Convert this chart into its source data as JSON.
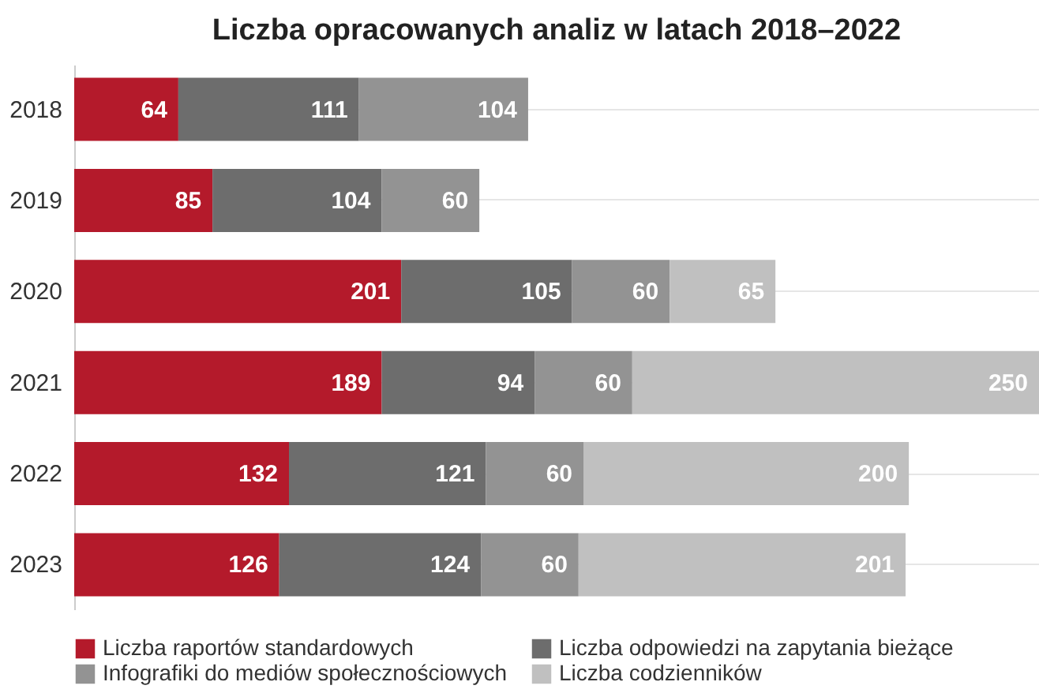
{
  "chart_data": {
    "type": "bar",
    "orientation": "horizontal",
    "stacked": true,
    "title": "Liczba opracowanych analiz w latach 2018–2022",
    "categories": [
      "2018",
      "2019",
      "2020",
      "2021",
      "2022",
      "2023"
    ],
    "series": [
      {
        "name": "Liczba raportów standardowych",
        "color": "#b41a2b",
        "values": [
          64,
          85,
          201,
          189,
          132,
          126
        ]
      },
      {
        "name": "Liczba odpowiedzi na zapytania bieżące",
        "color": "#6d6d6d",
        "values": [
          111,
          104,
          105,
          94,
          121,
          124
        ]
      },
      {
        "name": "Infografiki do mediów społecznościowych",
        "color": "#939393",
        "values": [
          104,
          60,
          60,
          60,
          60,
          60
        ]
      },
      {
        "name": "Liczba codzienników",
        "color": "#c0c0c0",
        "values": [
          null,
          null,
          65,
          250,
          200,
          201
        ]
      }
    ],
    "data_labels": true,
    "grid": "y",
    "legend": "bottom"
  }
}
